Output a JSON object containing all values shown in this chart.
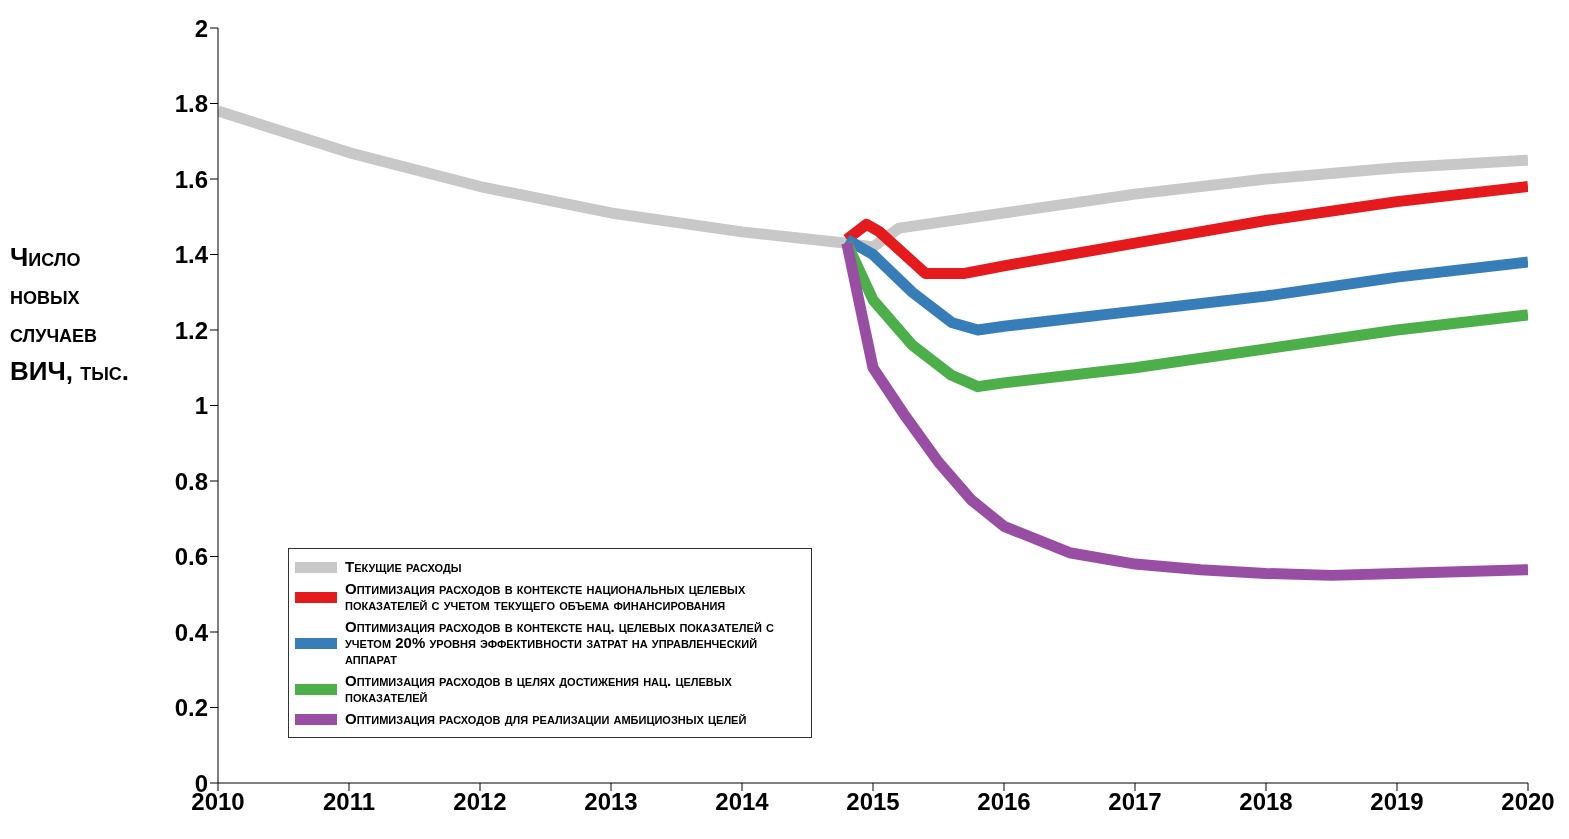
{
  "chart_data": {
    "type": "line",
    "ylabel": "Число новых случаев ВИЧ, тыс.",
    "xlim": [
      2010,
      2020
    ],
    "xticks": [
      2010,
      2011,
      2012,
      2013,
      2014,
      2015,
      2016,
      2017,
      2018,
      2019,
      2020
    ],
    "ylim": [
      0,
      2
    ],
    "yticks": [
      0,
      0.2,
      0.4,
      0.6,
      0.8,
      1,
      1.2,
      1.4,
      1.6,
      1.8,
      2
    ],
    "grid": false,
    "legend": "bottom left",
    "marker": "none",
    "line_style": "solid",
    "series": [
      {
        "name": "Текущие расходы",
        "color": "#c8c8c8",
        "x": [
          2010,
          2011,
          2012,
          2013,
          2014,
          2014.8,
          2015,
          2015.2,
          2016,
          2017,
          2018,
          2019,
          2020
        ],
        "values": [
          1.78,
          1.67,
          1.58,
          1.51,
          1.46,
          1.43,
          1.42,
          1.47,
          1.51,
          1.56,
          1.6,
          1.63,
          1.65
        ]
      },
      {
        "name": "Оптимизация расходов в контексте национальных целевых показателей с учетом текущего объема финансирования",
        "color": "#e41a1c",
        "x": [
          2014.8,
          2014.95,
          2015.05,
          2015.4,
          2015.7,
          2016,
          2017,
          2018,
          2019,
          2020
        ],
        "values": [
          1.44,
          1.48,
          1.46,
          1.35,
          1.35,
          1.37,
          1.43,
          1.49,
          1.54,
          1.58
        ]
      },
      {
        "name": "Оптимизация расходов в контексте нац. целевых показателей с учетом 20% уровня эффективности затрат на управленческий аппарат",
        "color": "#377eb8",
        "x": [
          2014.8,
          2015,
          2015.3,
          2015.6,
          2015.8,
          2016,
          2017,
          2018,
          2019,
          2020
        ],
        "values": [
          1.44,
          1.4,
          1.3,
          1.22,
          1.2,
          1.21,
          1.25,
          1.29,
          1.34,
          1.38
        ]
      },
      {
        "name": "Оптимизация расходов в целях достижения нац. целевых показателей",
        "color": "#4daf4a",
        "x": [
          2014.8,
          2015,
          2015.3,
          2015.6,
          2015.8,
          2016,
          2017,
          2018,
          2019,
          2020
        ],
        "values": [
          1.43,
          1.28,
          1.16,
          1.08,
          1.05,
          1.06,
          1.1,
          1.15,
          1.2,
          1.24
        ]
      },
      {
        "name": "Оптимизация расходов для реализации амбициозных целей",
        "color": "#984ea3",
        "x": [
          2014.8,
          2015,
          2015.25,
          2015.5,
          2015.75,
          2016,
          2016.5,
          2017,
          2017.5,
          2018,
          2018.5,
          2019,
          2020
        ],
        "values": [
          1.43,
          1.1,
          0.97,
          0.85,
          0.75,
          0.68,
          0.61,
          0.58,
          0.565,
          0.555,
          0.55,
          0.555,
          0.565
        ]
      }
    ]
  }
}
